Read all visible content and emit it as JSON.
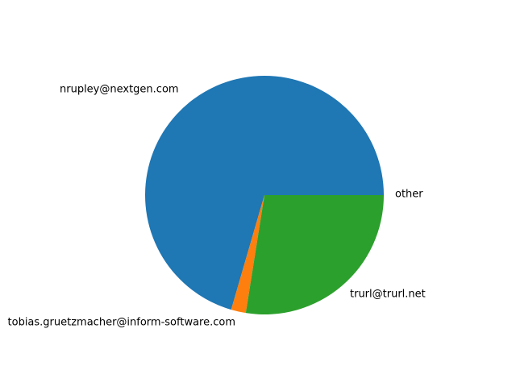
{
  "chart_data": {
    "type": "pie",
    "start_angle_deg": 0,
    "direction": "counterclockwise",
    "slices": [
      {
        "label": "other",
        "value": 70.5,
        "color": "#1f77b4"
      },
      {
        "label": "tobias.gruetzmacher@inform-software.com",
        "value": 2.0,
        "color": "#ff7f0e"
      },
      {
        "label": "trurl@trurl.net",
        "value": 27.5,
        "color": "#2ca02c"
      }
    ],
    "outer_labels": [
      {
        "text": "nrupley@nextgen.com"
      },
      {
        "text": "other"
      },
      {
        "text": "tobias.gruetzmacher@inform-software.com"
      },
      {
        "text": "trurl@trurl.net"
      }
    ],
    "legend": "none",
    "title": ""
  }
}
